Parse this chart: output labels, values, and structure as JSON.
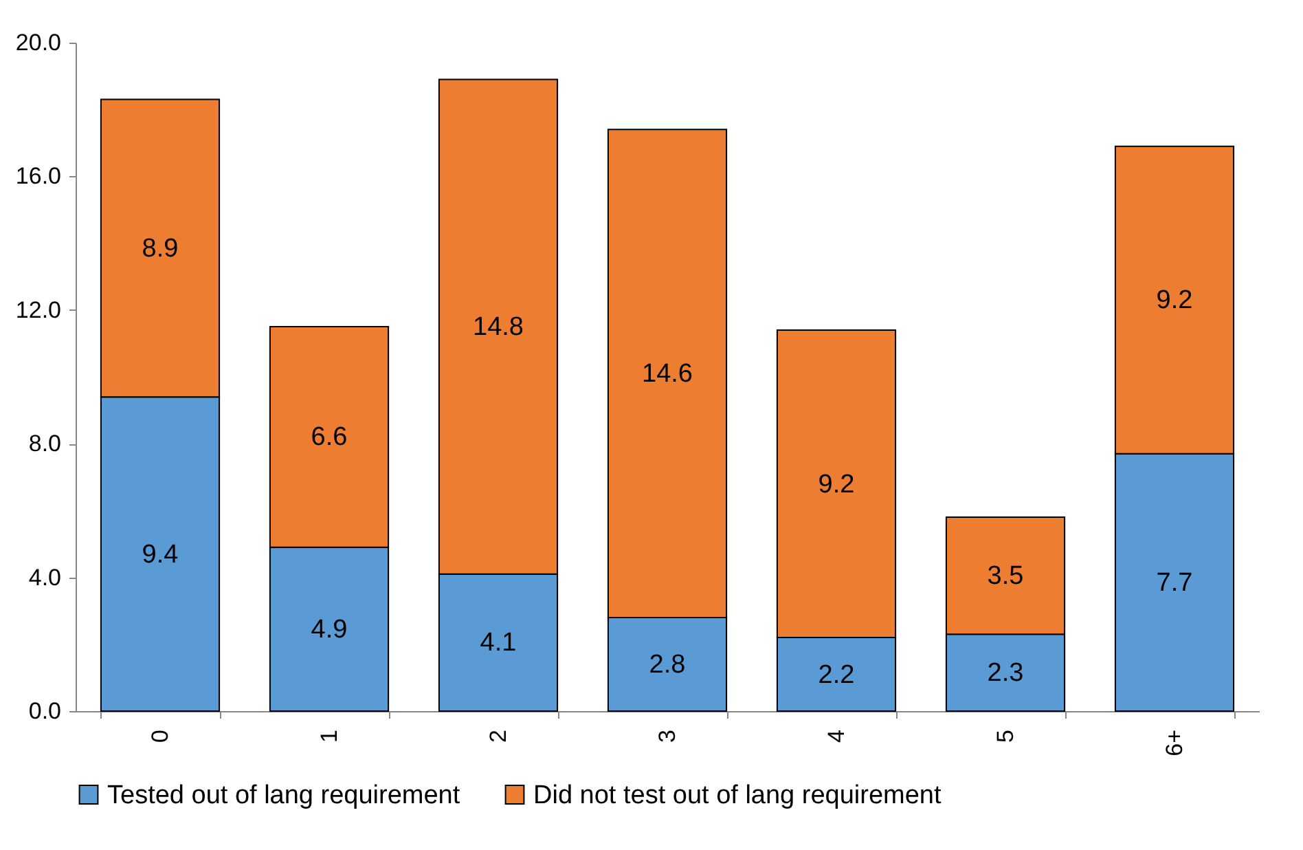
{
  "chart_data": {
    "type": "bar",
    "stacked": true,
    "categories": [
      "0",
      "1",
      "2",
      "3",
      "4",
      "5",
      "6+"
    ],
    "series": [
      {
        "name": "Tested out of lang requirement",
        "color": "#5b9bd5",
        "values": [
          9.4,
          4.9,
          4.1,
          2.8,
          2.2,
          2.3,
          7.7
        ]
      },
      {
        "name": "Did not test out of lang requirement",
        "color": "#ed7d31",
        "values": [
          8.9,
          6.6,
          14.8,
          14.6,
          9.2,
          3.5,
          9.2
        ]
      }
    ],
    "ylim": [
      0,
      20
    ],
    "yticks": [
      {
        "value": 0,
        "label": "0.0"
      },
      {
        "value": 4,
        "label": "4.0"
      },
      {
        "value": 8,
        "label": "8.0"
      },
      {
        "value": 12,
        "label": "12.0"
      },
      {
        "value": 16,
        "label": "16.0"
      },
      {
        "value": 20,
        "label": "20.0"
      }
    ],
    "data_labels": true,
    "legend": "bottom",
    "grid": false
  }
}
